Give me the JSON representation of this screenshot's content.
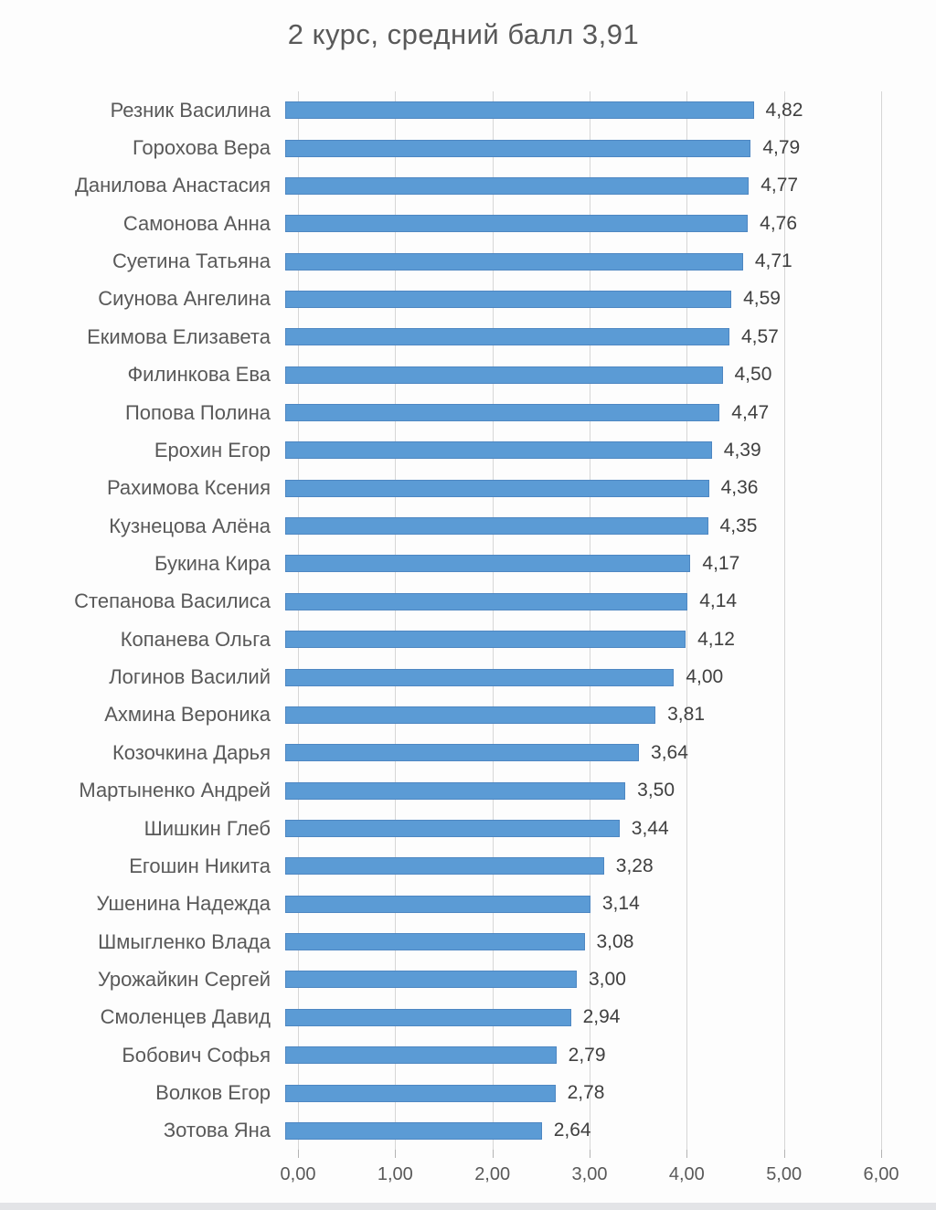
{
  "chart_data": {
    "type": "bar",
    "orientation": "horizontal",
    "title": "2 курс, средний балл 3,91",
    "categories": [
      "Резник Василина",
      "Горохова Вера",
      "Данилова Анастасия",
      "Самонова Анна",
      "Суетина Татьяна",
      "Сиунова Ангелина",
      "Екимова Елизавета",
      "Филинкова Ева",
      "Попова Полина",
      "Ерохин Егор",
      "Рахимова Ксения",
      "Кузнецова Алёна",
      "Букина Кира",
      "Степанова Василиса",
      "Копанева Ольга",
      "Логинов Василий",
      "Ахмина Вероника",
      "Козочкина Дарья",
      "Мартыненко Андрей",
      "Шишкин Глеб",
      "Егошин Никита",
      "Ушенина Надежда",
      "Шмыгленко Влада",
      "Урожайкин Сергей",
      "Смоленцев Давид",
      "Бобович Софья",
      "Волков Егор",
      "Зотова Яна"
    ],
    "values": [
      4.82,
      4.79,
      4.77,
      4.76,
      4.71,
      4.59,
      4.57,
      4.5,
      4.47,
      4.39,
      4.36,
      4.35,
      4.17,
      4.14,
      4.12,
      4.0,
      3.81,
      3.64,
      3.5,
      3.44,
      3.28,
      3.14,
      3.08,
      3.0,
      2.94,
      2.79,
      2.78,
      2.64
    ],
    "value_labels": [
      "4,82",
      "4,79",
      "4,77",
      "4,76",
      "4,71",
      "4,59",
      "4,57",
      "4,50",
      "4,47",
      "4,39",
      "4,36",
      "4,35",
      "4,17",
      "4,14",
      "4,12",
      "4,00",
      "3,81",
      "3,64",
      "3,50",
      "3,44",
      "3,28",
      "3,14",
      "3,08",
      "3,00",
      "2,94",
      "2,79",
      "2,78",
      "2,64"
    ],
    "xlabel": "",
    "ylabel": "",
    "xlim": [
      0,
      6
    ],
    "x_tick_values": [
      0,
      1,
      2,
      3,
      4,
      5,
      6
    ],
    "x_tick_labels": [
      "0,00",
      "1,00",
      "2,00",
      "3,00",
      "4,00",
      "5,00",
      "6,00"
    ],
    "grid": true,
    "legend": false,
    "bar_color": "#5b9bd5",
    "gridline_color": "#d6d6d6",
    "title_color": "#595959",
    "label_color": "#595959",
    "value_color": "#404040"
  }
}
